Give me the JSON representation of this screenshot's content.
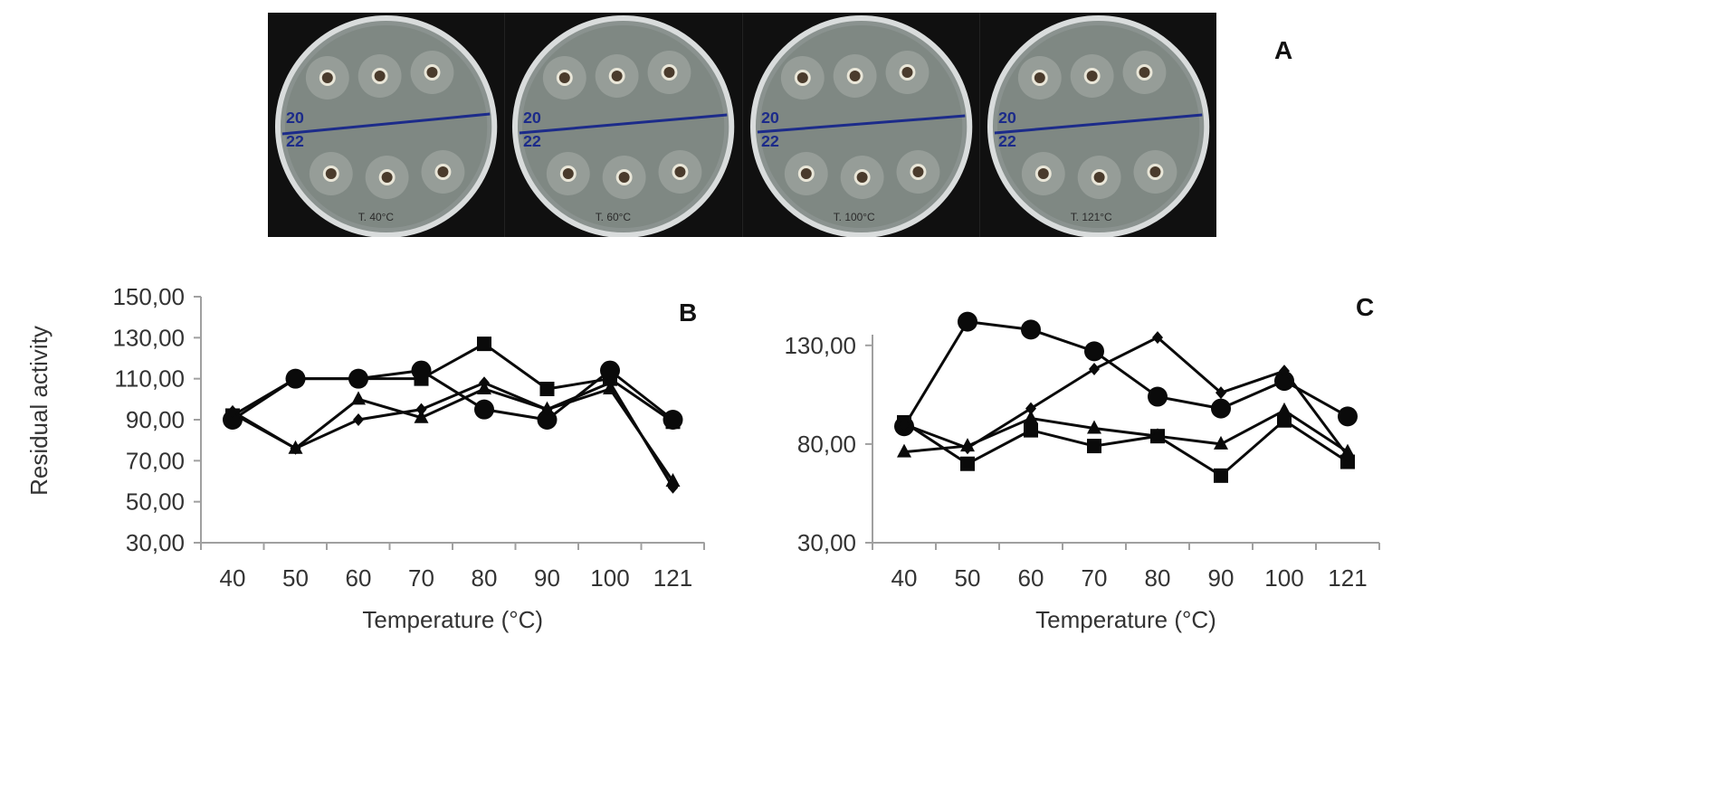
{
  "figure": {
    "panel_a_label": "A",
    "panel_b_label": "B",
    "panel_c_label": "C",
    "plates": [
      {
        "top_label": "20",
        "bottom_label": "22",
        "caption": "T. 40°C"
      },
      {
        "top_label": "20",
        "bottom_label": "22",
        "caption": "T. 60°C"
      },
      {
        "top_label": "20",
        "bottom_label": "22",
        "caption": "T. 100°C"
      },
      {
        "top_label": "20",
        "bottom_label": "22",
        "caption": "T. 121°C"
      }
    ]
  },
  "chart_data": [
    {
      "panel": "B",
      "type": "line",
      "title": "",
      "xlabel": "Temperature (°C)",
      "ylabel": "Residual activity",
      "categories": [
        "40",
        "50",
        "60",
        "70",
        "80",
        "90",
        "100",
        "121"
      ],
      "ylim": [
        30,
        150
      ],
      "yticks": [
        "30,00",
        "50,00",
        "70,00",
        "90,00",
        "110,00",
        "130,00",
        "150,00"
      ],
      "ytick_values": [
        30,
        50,
        70,
        90,
        110,
        130,
        150
      ],
      "grid": false,
      "legend": "none",
      "series": [
        {
          "name": "circle",
          "marker": "circle",
          "values": [
            90,
            110,
            110,
            114,
            95,
            90,
            114,
            90
          ]
        },
        {
          "name": "square",
          "marker": "square",
          "values": [
            92,
            110,
            110,
            110,
            127,
            105,
            110,
            89
          ]
        },
        {
          "name": "triangle",
          "marker": "triangle",
          "values": [
            93,
            76,
            100,
            91,
            105,
            95,
            105,
            60
          ]
        },
        {
          "name": "diamond",
          "marker": "diamond",
          "values": [
            94,
            76,
            90,
            95,
            108,
            95,
            108,
            57
          ]
        }
      ]
    },
    {
      "panel": "C",
      "type": "line",
      "title": "",
      "xlabel": "Temperature (°C)",
      "ylabel": "",
      "categories": [
        "40",
        "50",
        "60",
        "70",
        "80",
        "90",
        "100",
        "121"
      ],
      "ylim": [
        30,
        140
      ],
      "yticks": [
        "30,00",
        "80,00",
        "130,00"
      ],
      "ytick_values": [
        30,
        80,
        130
      ],
      "grid": false,
      "legend": "none",
      "series": [
        {
          "name": "circle",
          "marker": "circle",
          "values": [
            89,
            142,
            138,
            127,
            104,
            98,
            112,
            94
          ]
        },
        {
          "name": "square",
          "marker": "square",
          "values": [
            91,
            70,
            87,
            79,
            84,
            64,
            92,
            71
          ]
        },
        {
          "name": "triangle",
          "marker": "triangle",
          "values": [
            76,
            79,
            93,
            88,
            84,
            80,
            97,
            76
          ]
        },
        {
          "name": "diamond",
          "marker": "diamond",
          "values": [
            90,
            78,
            98,
            118,
            134,
            106,
            117,
            74
          ]
        }
      ]
    }
  ]
}
